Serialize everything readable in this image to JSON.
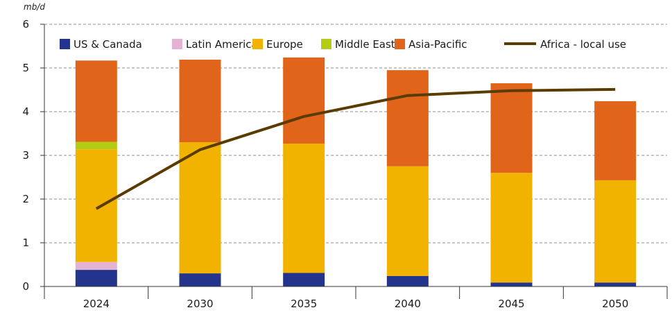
{
  "chart_data": {
    "type": "bar",
    "stacked": true,
    "y_unit": "mb/d",
    "categories": [
      "2024",
      "2030",
      "2035",
      "2040",
      "2045",
      "2050"
    ],
    "ylim": [
      0,
      6
    ],
    "yticks": [
      "0",
      "1",
      "2",
      "3",
      "4",
      "5",
      "6"
    ],
    "grid": "horizontal dashed",
    "legend_position": "top",
    "series": [
      {
        "name": "US & Canada",
        "color": "#24348c",
        "values": [
          0.38,
          0.3,
          0.31,
          0.24,
          0.09,
          0.09
        ]
      },
      {
        "name": "Latin America",
        "color": "#e4b3d4",
        "values": [
          0.18,
          0.0,
          0.0,
          0.0,
          0.0,
          0.0
        ]
      },
      {
        "name": "Europe",
        "color": "#f2b200",
        "values": [
          2.58,
          3.0,
          2.96,
          2.51,
          2.51,
          2.34
        ]
      },
      {
        "name": "Middle East",
        "color": "#b4cc14",
        "values": [
          0.17,
          0.0,
          0.0,
          0.0,
          0.0,
          0.0
        ]
      },
      {
        "name": "Asia-Pacific",
        "color": "#e0641a",
        "values": [
          1.86,
          1.89,
          1.97,
          2.2,
          2.05,
          1.81
        ]
      }
    ],
    "line": {
      "name": "Africa - local use",
      "color": "#5a3b00",
      "values": [
        1.78,
        3.13,
        3.89,
        4.37,
        4.48,
        4.51
      ]
    }
  }
}
